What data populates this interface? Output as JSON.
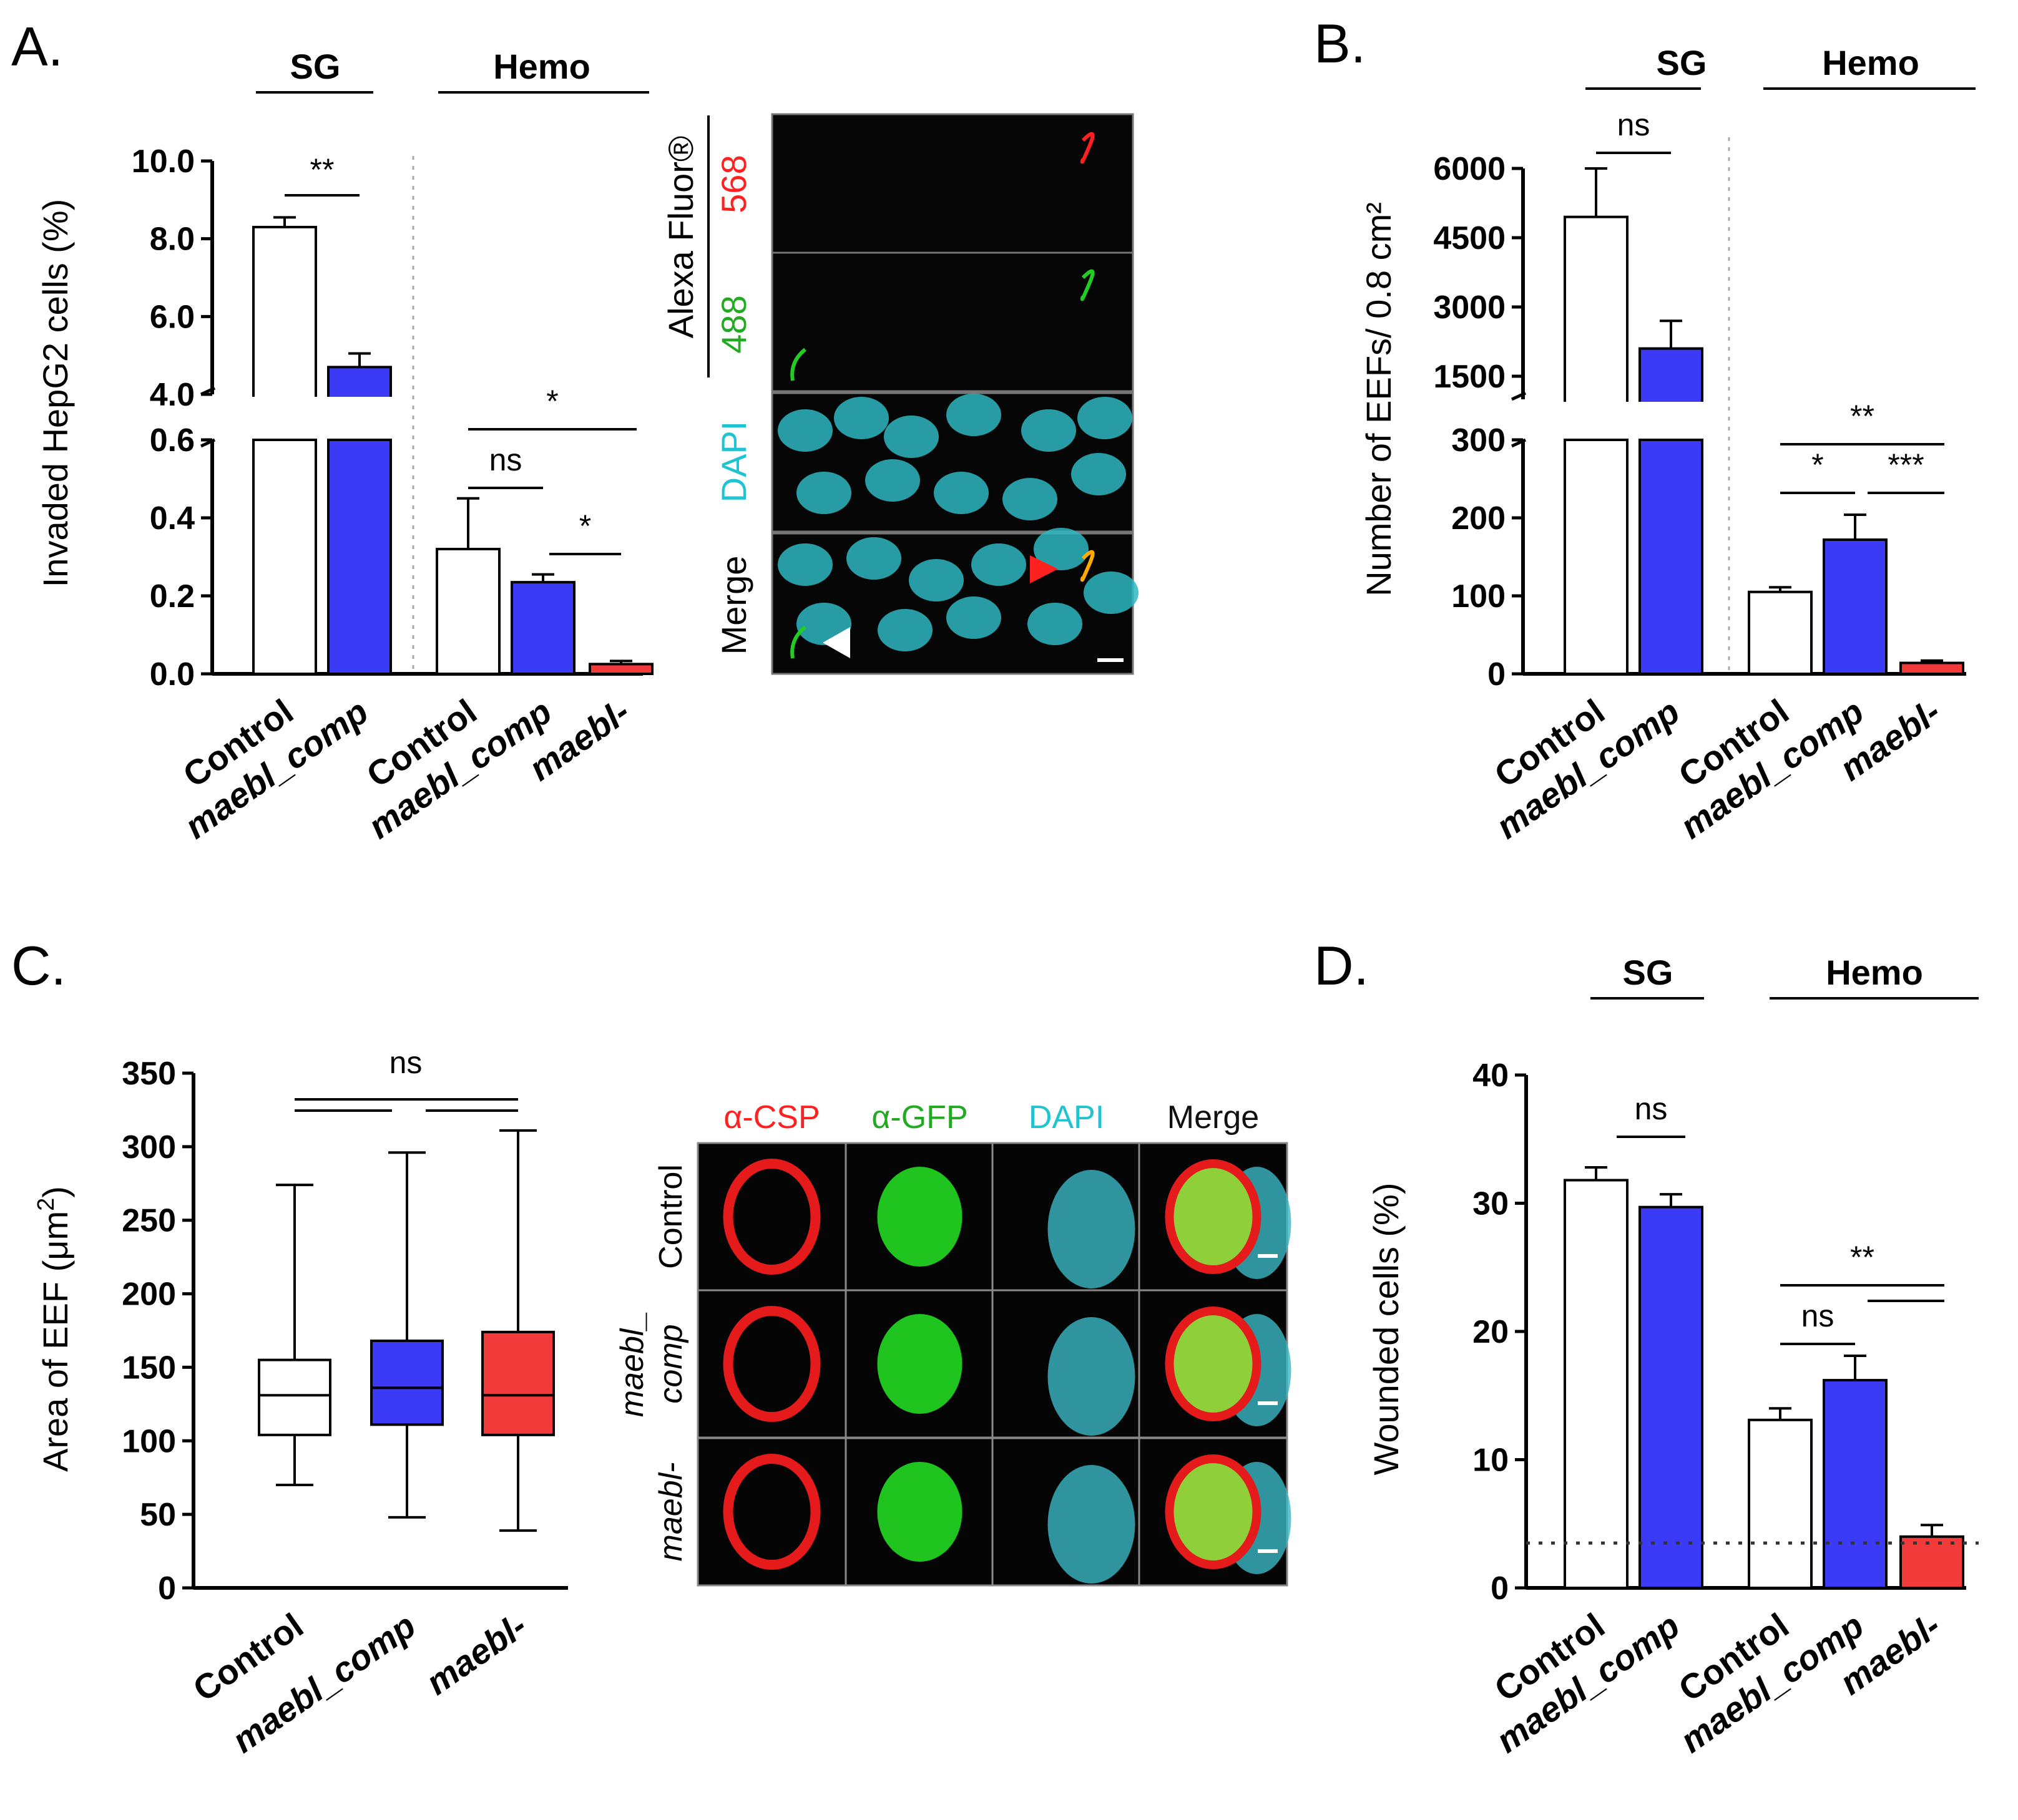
{
  "panels": {
    "A": {
      "label": "A.",
      "group_sg": "SG",
      "group_hemo": "Hemo"
    },
    "B": {
      "label": "B.",
      "group_sg": "SG",
      "group_hemo": "Hemo"
    },
    "C": {
      "label": "C."
    },
    "D": {
      "label": "D.",
      "group_sg": "SG",
      "group_hemo": "Hemo"
    }
  },
  "colors": {
    "control": "#ffffff",
    "comp": "#3b3bf5",
    "maebl": "#f23a3a",
    "axis": "#000000"
  },
  "micrographs": {
    "A": {
      "title_alexa": "Alexa Fluor®",
      "ch568": "568",
      "ch488": "488",
      "dapi": "DAPI",
      "merge": "Merge"
    },
    "C": {
      "col_csp": "α-CSP",
      "col_gfp": "α-GFP",
      "col_dapi": "DAPI",
      "col_merge": "Merge",
      "row_control": "Control",
      "row_comp_1": "maebl_",
      "row_comp_2": "comp",
      "row_maebl": "maebl-"
    }
  },
  "chart_data": [
    {
      "id": "A",
      "type": "bar",
      "ylabel": "Invaded HepG2 cells (%)",
      "y_axis_break": true,
      "ylim_lower": [
        0,
        0.6
      ],
      "ylim_upper": [
        4.0,
        10.0
      ],
      "yticks_lower": [
        "0.0",
        "0.2",
        "0.4",
        "0.6"
      ],
      "yticks_upper": [
        "4.0",
        "6.0",
        "8.0",
        "10.0"
      ],
      "categories": [
        "Control",
        "maebl_comp",
        "Control",
        "maebl_comp",
        "maebl-"
      ],
      "groups": [
        "SG",
        "SG",
        "Hemo",
        "Hemo",
        "Hemo"
      ],
      "values": [
        8.3,
        4.7,
        0.32,
        0.235,
        0.025
      ],
      "errors": [
        0.25,
        0.35,
        0.13,
        0.02,
        0.008
      ],
      "significance": [
        {
          "between": [
            "Control (SG)",
            "maebl_comp (SG)"
          ],
          "label": "**"
        },
        {
          "between": [
            "Control (Hemo)",
            "maebl_comp (Hemo)"
          ],
          "label": "ns"
        },
        {
          "between": [
            "maebl_comp (Hemo)",
            "maebl-"
          ],
          "label": "*"
        },
        {
          "between": [
            "Control (Hemo)",
            "maebl-"
          ],
          "label": "*"
        }
      ]
    },
    {
      "id": "B",
      "type": "bar",
      "ylabel": "Number of EEFs/ 0.8 cm²",
      "y_axis_break": true,
      "ylim_lower": [
        0,
        300
      ],
      "ylim_upper": [
        1000,
        6000
      ],
      "yticks_lower": [
        "0",
        "100",
        "200",
        "300"
      ],
      "yticks_upper": [
        "1500",
        "3000",
        "4500",
        "6000"
      ],
      "categories": [
        "Control",
        "maebl_comp",
        "Control",
        "maebl_comp",
        "maebl-"
      ],
      "groups": [
        "SG",
        "SG",
        "Hemo",
        "Hemo",
        "Hemo"
      ],
      "values": [
        4950,
        2100,
        105,
        172,
        14
      ],
      "errors": [
        1050,
        600,
        6,
        32,
        3
      ],
      "significance": [
        {
          "between": [
            "Control (SG)",
            "maebl_comp (SG)"
          ],
          "label": "ns"
        },
        {
          "between": [
            "Control (Hemo)",
            "maebl_comp (Hemo)"
          ],
          "label": "*"
        },
        {
          "between": [
            "maebl_comp (Hemo)",
            "maebl-"
          ],
          "label": "***"
        },
        {
          "between": [
            "Control (Hemo)",
            "maebl-"
          ],
          "label": "**"
        }
      ]
    },
    {
      "id": "C",
      "type": "box",
      "ylabel_prefix": "Area of EEF (μm",
      "ylabel_sup": "2",
      "ylabel_suffix": ")",
      "ylim": [
        0,
        350
      ],
      "yticks": [
        "0",
        "50",
        "100",
        "150",
        "200",
        "250",
        "300",
        "350"
      ],
      "categories": [
        "Control",
        "maebl_comp",
        "maebl-"
      ],
      "boxes": [
        {
          "min": 70,
          "q1": 104,
          "median": 131,
          "q3": 155,
          "max": 274
        },
        {
          "min": 48,
          "q1": 111,
          "median": 136,
          "q3": 168,
          "max": 296
        },
        {
          "min": 39,
          "q1": 104,
          "median": 131,
          "q3": 174,
          "max": 311
        }
      ],
      "significance": [
        {
          "between": [
            "Control",
            "maebl_comp"
          ],
          "label": "ns"
        },
        {
          "between": [
            "maebl_comp",
            "maebl-"
          ],
          "label": "ns"
        },
        {
          "between": [
            "Control",
            "maebl-"
          ],
          "label": "ns"
        }
      ],
      "sig_label": "ns"
    },
    {
      "id": "D",
      "type": "bar",
      "ylabel": "Wounded cells (%)",
      "ylim": [
        0,
        40
      ],
      "yticks": [
        "0",
        "10",
        "20",
        "30",
        "40"
      ],
      "baseline": 3.5,
      "categories": [
        "Control",
        "maebl_comp",
        "Control",
        "maebl_comp",
        "maebl-"
      ],
      "groups": [
        "SG",
        "SG",
        "Hemo",
        "Hemo",
        "Hemo"
      ],
      "values": [
        31.8,
        29.7,
        13.1,
        16.2,
        4.0
      ],
      "errors": [
        1.0,
        1.0,
        0.9,
        1.9,
        0.9
      ],
      "significance": [
        {
          "between": [
            "Control (SG)",
            "maebl_comp (SG)"
          ],
          "label": "ns"
        },
        {
          "between": [
            "Control (Hemo)",
            "maebl_comp (Hemo)"
          ],
          "label": "ns"
        },
        {
          "between": [
            "maebl_comp (Hemo)",
            "maebl-"
          ],
          "label": ""
        },
        {
          "between": [
            "Control (Hemo)",
            "maebl-"
          ],
          "label": "**"
        }
      ]
    }
  ]
}
